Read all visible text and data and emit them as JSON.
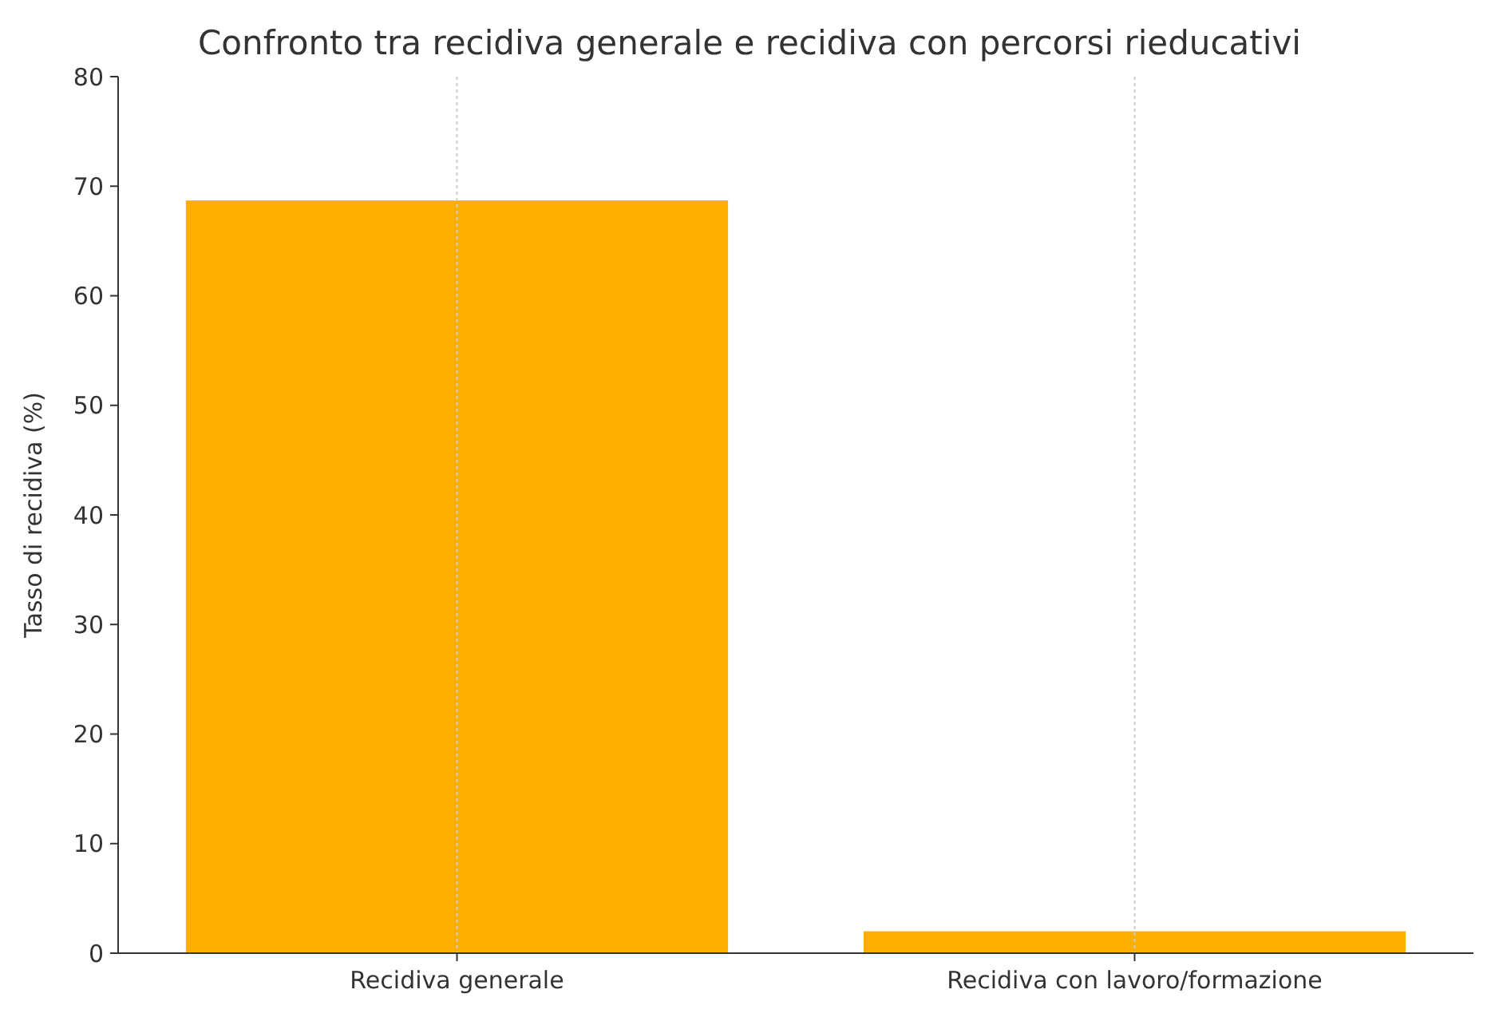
{
  "chart_data": {
    "type": "bar",
    "title": "Confronto tra recidiva generale e recidiva con percorsi rieducativi",
    "ylabel": "Tasso di recidiva (%)",
    "categories": [
      "Recidiva generale",
      "Recidiva con lavoro/formazione"
    ],
    "values": [
      68.7,
      2
    ],
    "color": "#ffaf00",
    "ylim": [
      0,
      80
    ],
    "yticks": [
      0,
      10,
      20,
      30,
      40,
      50,
      60,
      70,
      80
    ],
    "grid": "x"
  }
}
